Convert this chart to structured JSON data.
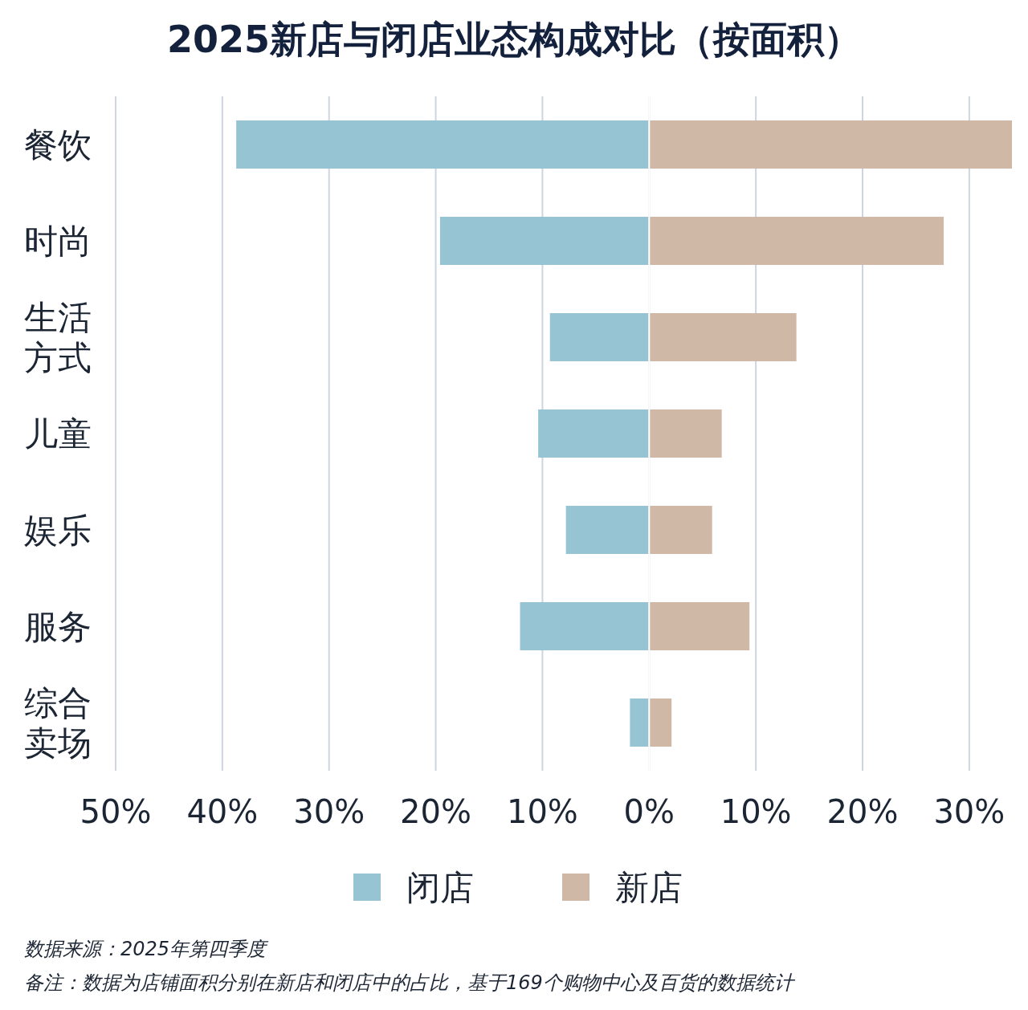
{
  "chart_data": {
    "type": "bar",
    "orientation": "horizontal",
    "stacked": true,
    "title": "2025新店与闭店业态构成对比（按面积）",
    "categories": [
      "餐饮",
      "时尚",
      "生活方式",
      "儿童",
      "娱乐",
      "服务",
      "综合卖场"
    ],
    "series": [
      {
        "name": "闭店",
        "color": "#96c4d2",
        "values": [
          -38.7,
          -19.6,
          -9.3,
          -10.4,
          -7.8,
          -12.1,
          -1.8
        ]
      },
      {
        "name": "新店",
        "color": "#d0b8a6",
        "values": [
          34,
          27.6,
          13.8,
          6.8,
          5.9,
          9.4,
          2.1
        ]
      }
    ],
    "xlim": [
      -50,
      34
    ],
    "xticks": [
      {
        "value": -50,
        "label": "50%"
      },
      {
        "value": -40,
        "label": "40%"
      },
      {
        "value": -30,
        "label": "30%"
      },
      {
        "value": -20,
        "label": "20%"
      },
      {
        "value": -10,
        "label": "10%"
      },
      {
        "value": 0,
        "label": "0%"
      },
      {
        "value": 10,
        "label": "10%"
      },
      {
        "value": 20,
        "label": "20%"
      },
      {
        "value": 30,
        "label": "30%"
      }
    ],
    "grid": "x",
    "legend": "bottom",
    "annotations": [
      "数据来源：2025年第四季度",
      "备注：数据为店铺面积分别在新店和闭店中的占比，基于169个购物中心及百货的数据统计"
    ]
  }
}
